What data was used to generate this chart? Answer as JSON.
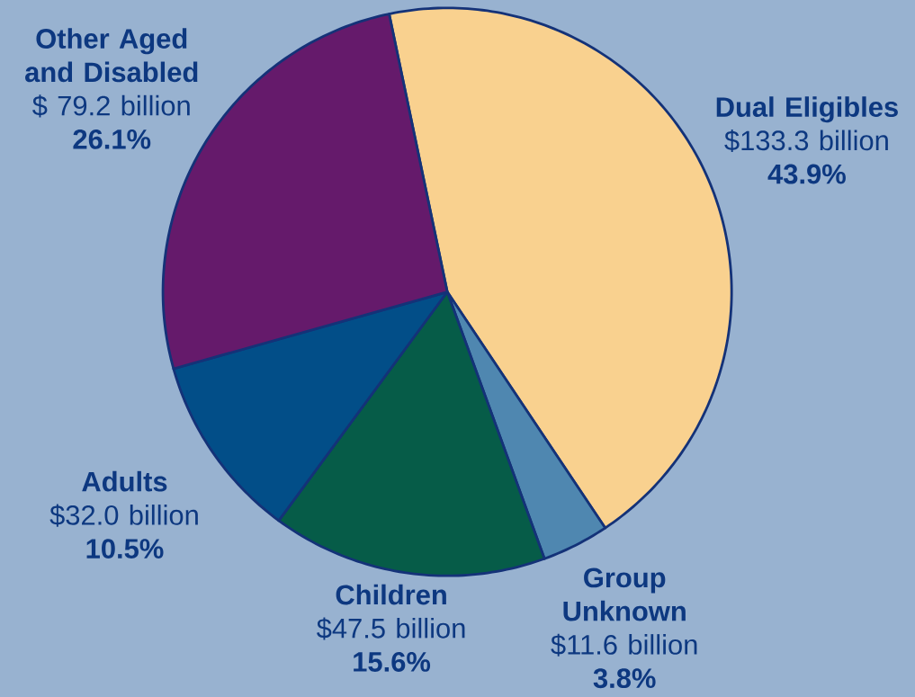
{
  "chart_data": {
    "type": "pie",
    "categories": [
      "Dual Eligibles",
      "Group Unknown",
      "Children",
      "Adults",
      "Other Aged and Disabled"
    ],
    "values": [
      133.3,
      11.6,
      47.5,
      32.0,
      79.2
    ],
    "colors": [
      "#f9d18f",
      "#4f87b0",
      "#065c48",
      "#024e88",
      "#651a6b"
    ],
    "value_labels": [
      "$133.3 billion",
      "$11.6 billion",
      "$47.5 billion",
      "$32.0 billion",
      "$ 79.2 billion"
    ],
    "annotations": [
      "43.9%",
      "3.8%",
      "15.6%",
      "10.5%",
      "26.1%"
    ]
  }
}
